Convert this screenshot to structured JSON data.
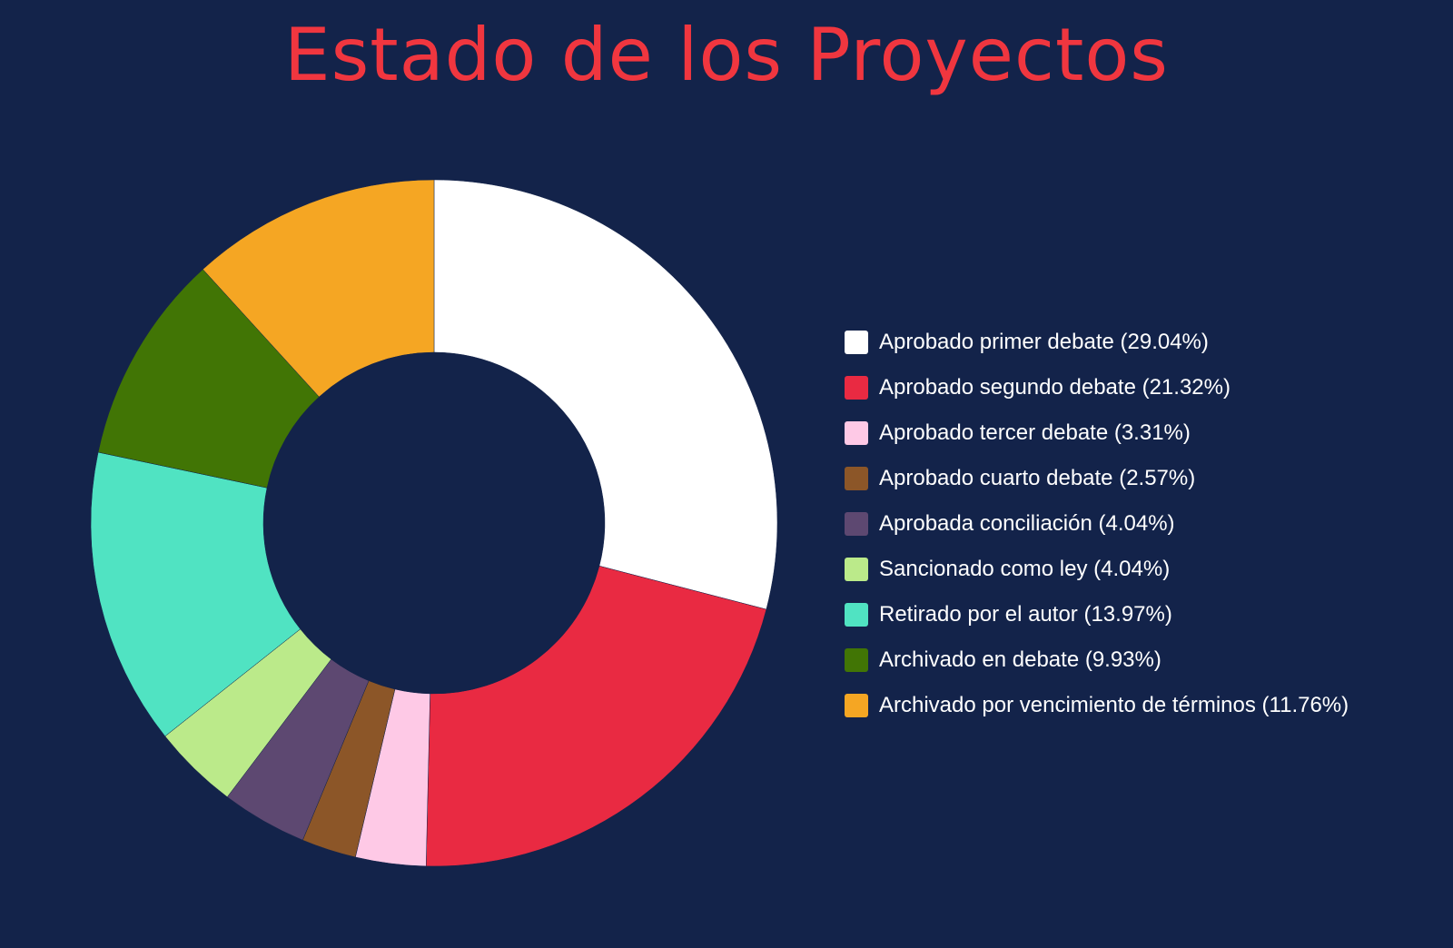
{
  "page_title": "Estado de los Proyectos",
  "chart_data": {
    "type": "pie",
    "title": "Estado de los Proyectos",
    "donut": true,
    "legend_position": "right",
    "colors": {
      "background": "#13234a",
      "title": "#f0363f",
      "legend_text": "#ffffff"
    },
    "slices": [
      {
        "label": "Aprobado primer debate",
        "value": 29.04,
        "display": "Aprobado primer debate (29.04%)",
        "color": "#ffffff"
      },
      {
        "label": "Aprobado segundo debate",
        "value": 21.32,
        "display": "Aprobado segundo debate (21.32%)",
        "color": "#e92a42"
      },
      {
        "label": "Aprobado tercer debate",
        "value": 3.31,
        "display": "Aprobado tercer debate (3.31%)",
        "color": "#fec9e6"
      },
      {
        "label": "Aprobado cuarto debate",
        "value": 2.57,
        "display": "Aprobado cuarto debate (2.57%)",
        "color": "#8c5628"
      },
      {
        "label": "Aprobada conciliación",
        "value": 4.04,
        "display": "Aprobada conciliación (4.04%)",
        "color": "#5d4871"
      },
      {
        "label": "Sancionado como ley",
        "value": 4.04,
        "display": "Sancionado como ley (4.04%)",
        "color": "#bbea8a"
      },
      {
        "label": "Retirado por el autor",
        "value": 13.97,
        "display": "Retirado por el autor (13.97%)",
        "color": "#50e3c2"
      },
      {
        "label": "Archivado en debate",
        "value": 9.93,
        "display": "Archivado en debate (9.93%)",
        "color": "#417505"
      },
      {
        "label": "Archivado por vencimiento de términos",
        "value": 11.76,
        "display": "Archivado por vencimiento de términos (11.76%)",
        "color": "#f5a623"
      }
    ]
  }
}
